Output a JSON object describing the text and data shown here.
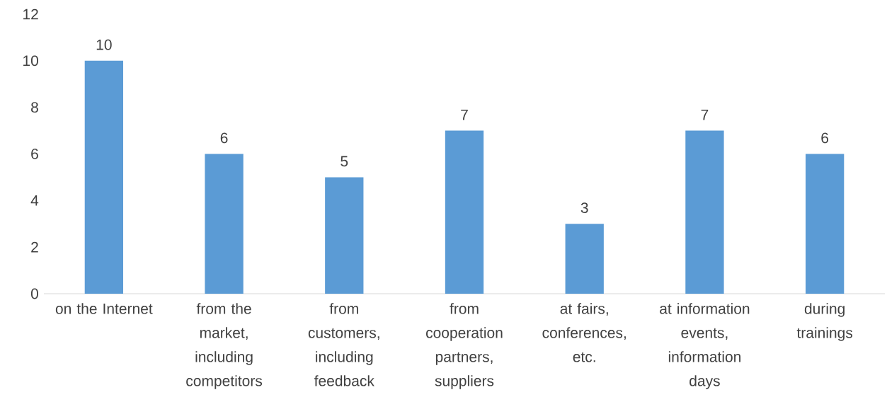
{
  "chart_data": {
    "type": "bar",
    "categories": [
      "on the Internet",
      "from the market, including competitors",
      "from customers, including feedback",
      "from cooperation partners, suppliers",
      "at fairs, conferences, etc.",
      "at information events, information days",
      "during trainings"
    ],
    "values": [
      10,
      6,
      5,
      7,
      3,
      7,
      6
    ],
    "color": "#5b9bd5",
    "ylim": [
      0,
      12
    ],
    "yticks": [
      0,
      2,
      4,
      6,
      8,
      10,
      12
    ],
    "data_labels": true
  }
}
